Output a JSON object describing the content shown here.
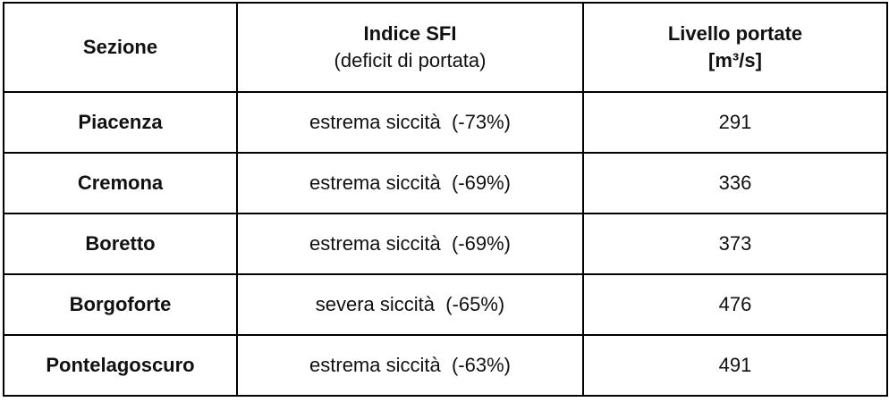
{
  "table": {
    "header": [
      [
        "Sezione"
      ],
      [
        "Indice SFI",
        "(deficit di portata)"
      ],
      [
        "Livello portate",
        "[m³/s]"
      ]
    ],
    "rows": [
      [
        "Piacenza",
        "estrema siccità  (-73%)",
        291
      ],
      [
        "Cremona",
        "estrema siccità  (-69%)",
        336
      ],
      [
        "Boretto",
        "estrema siccità  (-69%)",
        373
      ],
      [
        "Borgoforte",
        "severa siccità  (-65%)",
        476
      ],
      [
        "Pontelagoscuro",
        "estrema siccità  (-63%)",
        491
      ]
    ]
  }
}
